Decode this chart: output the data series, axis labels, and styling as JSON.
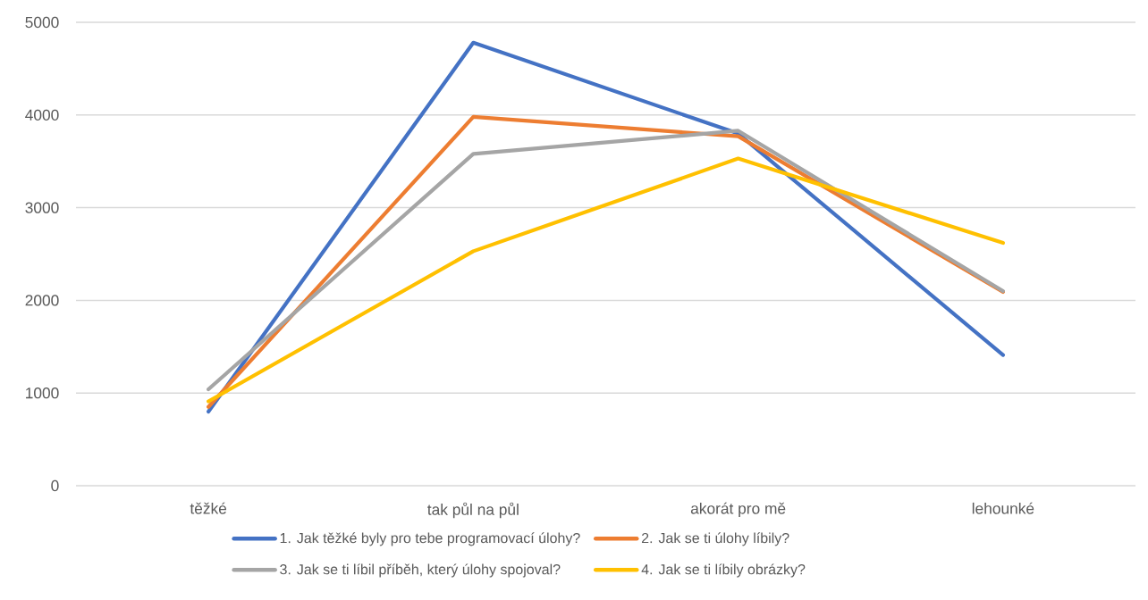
{
  "chart_data": {
    "type": "line",
    "categories": [
      "těžké",
      "tak půl na půl",
      "akorát pro mě",
      "lehounké"
    ],
    "series": [
      {
        "name": "1. Jak těžké byly pro tebe programovací úlohy?",
        "color": "#4472c4",
        "values": [
          800,
          4780,
          3800,
          1410
        ]
      },
      {
        "name": "2. Jak se ti úlohy líbily?",
        "color": "#ed7d31",
        "values": [
          850,
          3980,
          3770,
          2090
        ]
      },
      {
        "name": "3. Jak se ti líbil příběh, který úlohy spojoval?",
        "color": "#a5a5a5",
        "values": [
          1040,
          3580,
          3830,
          2100
        ]
      },
      {
        "name": "4. Jak se ti líbily obrázky?",
        "color": "#ffc000",
        "values": [
          910,
          2530,
          3530,
          2620
        ]
      }
    ],
    "ylim": [
      0,
      5000
    ],
    "yticks": [
      0,
      1000,
      2000,
      3000,
      4000,
      5000
    ],
    "grid": "y",
    "legend": "bottom",
    "marker": "none",
    "line_style": "solid"
  }
}
